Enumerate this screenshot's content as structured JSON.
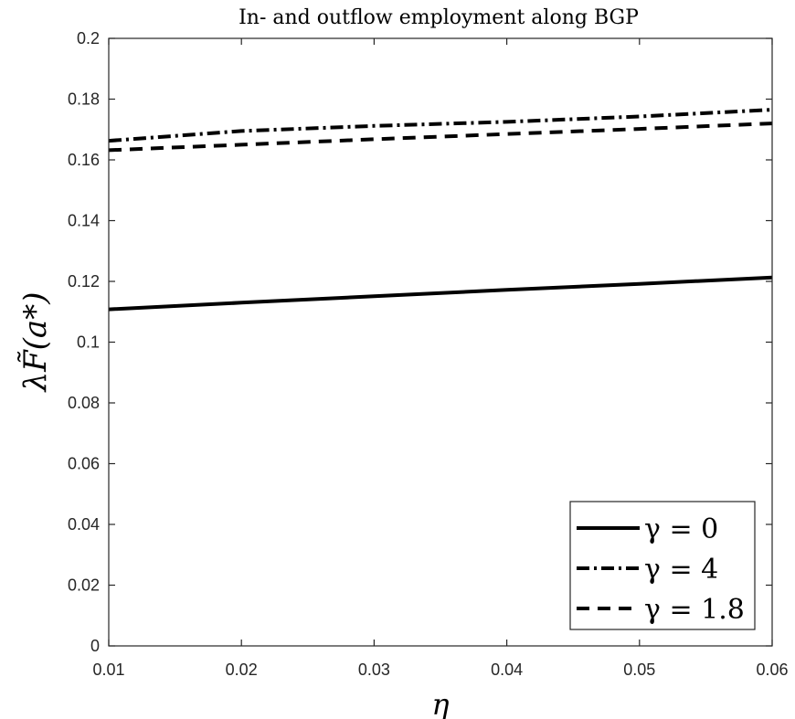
{
  "chart_data": {
    "type": "line",
    "title": "In- and outflow employment along BGP",
    "xlabel": "η",
    "ylabel": "λF̃(a*)",
    "xlim": [
      0.01,
      0.06
    ],
    "ylim": [
      0,
      0.2
    ],
    "x_ticks": [
      "0.01",
      "0.02",
      "0.03",
      "0.04",
      "0.05",
      "0.06"
    ],
    "y_ticks": [
      "0",
      "0.02",
      "0.04",
      "0.06",
      "0.08",
      "0.1",
      "0.12",
      "0.14",
      "0.16",
      "0.18",
      "0.2"
    ],
    "x": [
      0.01,
      0.02,
      0.03,
      0.04,
      0.05,
      0.06
    ],
    "series": [
      {
        "name": "γ = 0",
        "style": "solid",
        "values": [
          0.1108,
          0.113,
          0.1151,
          0.1172,
          0.1192,
          0.1213
        ]
      },
      {
        "name": "γ = 4",
        "style": "dashdot",
        "values": [
          0.1663,
          0.1695,
          0.1712,
          0.1725,
          0.1743,
          0.1765
        ]
      },
      {
        "name": "γ = 1.8",
        "style": "dashed",
        "values": [
          0.1632,
          0.165,
          0.1668,
          0.1685,
          0.1702,
          0.172
        ]
      }
    ],
    "legend_position": "bottom-right",
    "grid": false,
    "line_color": "#000000"
  }
}
